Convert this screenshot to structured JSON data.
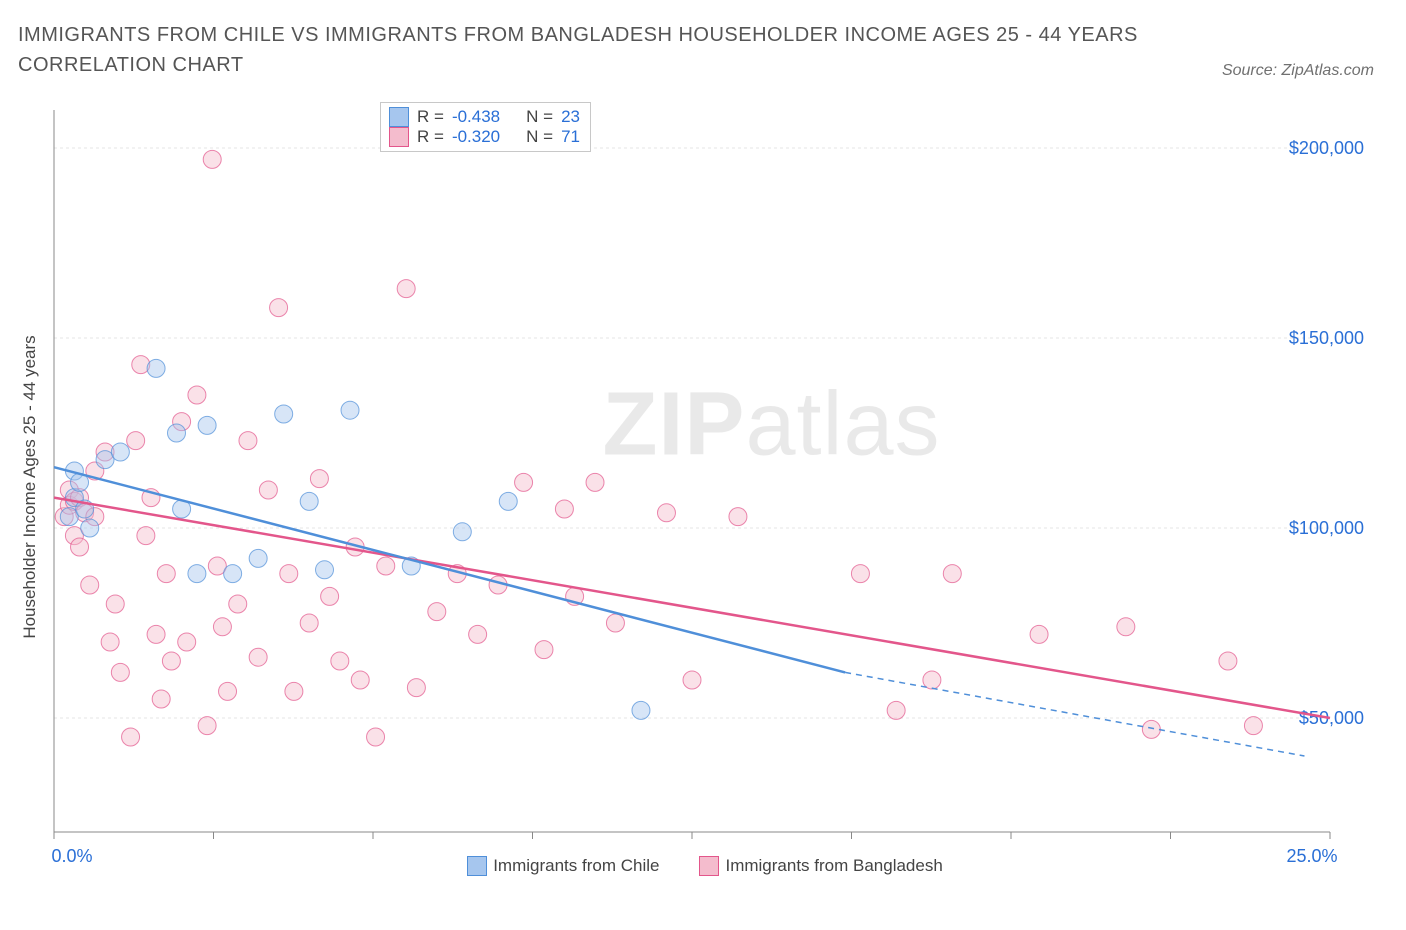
{
  "title": "IMMIGRANTS FROM CHILE VS IMMIGRANTS FROM BANGLADESH HOUSEHOLDER INCOME AGES 25 - 44 YEARS CORRELATION CHART",
  "source": "Source: ZipAtlas.com",
  "watermark_a": "ZIP",
  "watermark_b": "atlas",
  "y_axis_label": "Householder Income Ages 25 - 44 years",
  "chart": {
    "type": "scatter",
    "background_color": "#ffffff",
    "grid_color": "#e5e5e5",
    "axis_color": "#888888",
    "label_color": "#444444",
    "tick_label_color": "#2a6fd6",
    "xlim": [
      0,
      25
    ],
    "ylim": [
      20000,
      210000
    ],
    "y_ticks": [
      50000,
      100000,
      150000,
      200000
    ],
    "y_tick_labels": [
      "$50,000",
      "$100,000",
      "$150,000",
      "$200,000"
    ],
    "x_ticks": [
      0,
      25
    ],
    "x_tick_labels": [
      "0.0%",
      "25.0%"
    ],
    "x_minor_ticks": [
      3.125,
      6.25,
      9.375,
      12.5,
      15.625,
      18.75,
      21.875
    ],
    "marker_radius": 9,
    "marker_opacity": 0.45,
    "line_width": 2.5,
    "series": {
      "chile": {
        "label": "Immigrants from Chile",
        "fill_color": "#a6c6ee",
        "stroke_color": "#4f8fd9",
        "r_value": "-0.438",
        "n_value": "23",
        "trend": {
          "x1": 0,
          "y1": 116000,
          "x2": 15.5,
          "y2": 62000,
          "extend_x2": 24.5,
          "extend_y2": 40000
        },
        "points": [
          [
            0.3,
            103000
          ],
          [
            0.4,
            115000
          ],
          [
            0.4,
            108000
          ],
          [
            0.5,
            112000
          ],
          [
            0.6,
            105000
          ],
          [
            0.7,
            100000
          ],
          [
            1.0,
            118000
          ],
          [
            1.3,
            120000
          ],
          [
            2.0,
            142000
          ],
          [
            2.4,
            125000
          ],
          [
            2.5,
            105000
          ],
          [
            2.8,
            88000
          ],
          [
            3.0,
            127000
          ],
          [
            3.5,
            88000
          ],
          [
            4.0,
            92000
          ],
          [
            4.5,
            130000
          ],
          [
            5.0,
            107000
          ],
          [
            5.3,
            89000
          ],
          [
            5.8,
            131000
          ],
          [
            7.0,
            90000
          ],
          [
            8.0,
            99000
          ],
          [
            8.9,
            107000
          ],
          [
            11.5,
            52000
          ]
        ]
      },
      "bangladesh": {
        "label": "Immigrants from Bangladesh",
        "fill_color": "#f4bccd",
        "stroke_color": "#e3568b",
        "r_value": "-0.320",
        "n_value": "71",
        "trend": {
          "x1": 0,
          "y1": 108000,
          "x2": 25,
          "y2": 50000
        },
        "points": [
          [
            0.2,
            103000
          ],
          [
            0.3,
            110000
          ],
          [
            0.3,
            106000
          ],
          [
            0.4,
            98000
          ],
          [
            0.4,
            107000
          ],
          [
            0.5,
            108000
          ],
          [
            0.5,
            95000
          ],
          [
            0.6,
            104000
          ],
          [
            0.7,
            85000
          ],
          [
            0.8,
            103000
          ],
          [
            0.8,
            115000
          ],
          [
            1.0,
            120000
          ],
          [
            1.1,
            70000
          ],
          [
            1.2,
            80000
          ],
          [
            1.3,
            62000
          ],
          [
            1.5,
            45000
          ],
          [
            1.6,
            123000
          ],
          [
            1.7,
            143000
          ],
          [
            1.8,
            98000
          ],
          [
            1.9,
            108000
          ],
          [
            2.0,
            72000
          ],
          [
            2.1,
            55000
          ],
          [
            2.2,
            88000
          ],
          [
            2.3,
            65000
          ],
          [
            2.5,
            128000
          ],
          [
            2.6,
            70000
          ],
          [
            2.8,
            135000
          ],
          [
            3.0,
            48000
          ],
          [
            3.1,
            197000
          ],
          [
            3.2,
            90000
          ],
          [
            3.3,
            74000
          ],
          [
            3.4,
            57000
          ],
          [
            3.6,
            80000
          ],
          [
            3.8,
            123000
          ],
          [
            4.0,
            66000
          ],
          [
            4.2,
            110000
          ],
          [
            4.4,
            158000
          ],
          [
            4.6,
            88000
          ],
          [
            4.7,
            57000
          ],
          [
            5.0,
            75000
          ],
          [
            5.2,
            113000
          ],
          [
            5.4,
            82000
          ],
          [
            5.6,
            65000
          ],
          [
            5.9,
            95000
          ],
          [
            6.0,
            60000
          ],
          [
            6.3,
            45000
          ],
          [
            6.5,
            90000
          ],
          [
            6.9,
            163000
          ],
          [
            7.1,
            58000
          ],
          [
            7.5,
            78000
          ],
          [
            7.9,
            88000
          ],
          [
            8.3,
            72000
          ],
          [
            8.7,
            85000
          ],
          [
            9.2,
            112000
          ],
          [
            9.6,
            68000
          ],
          [
            10.0,
            105000
          ],
          [
            10.2,
            82000
          ],
          [
            10.6,
            112000
          ],
          [
            11.0,
            75000
          ],
          [
            12.0,
            104000
          ],
          [
            12.5,
            60000
          ],
          [
            13.4,
            103000
          ],
          [
            15.8,
            88000
          ],
          [
            16.5,
            52000
          ],
          [
            17.2,
            60000
          ],
          [
            17.6,
            88000
          ],
          [
            19.3,
            72000
          ],
          [
            21.0,
            74000
          ],
          [
            21.5,
            47000
          ],
          [
            23.0,
            65000
          ],
          [
            23.5,
            48000
          ]
        ]
      }
    }
  },
  "legend_stats": {
    "r_label": "R =",
    "n_label": "N ="
  }
}
